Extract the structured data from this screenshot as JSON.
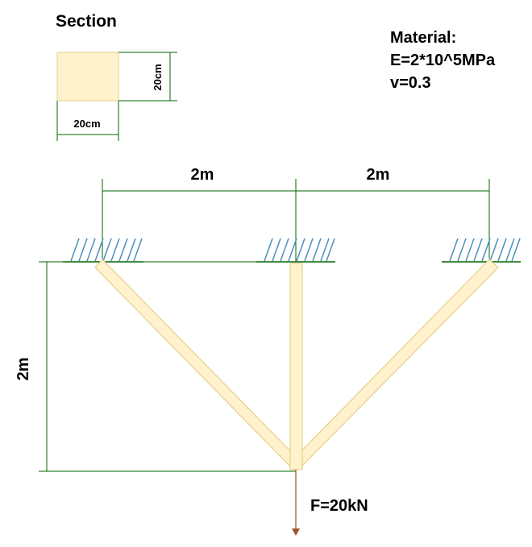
{
  "section": {
    "title": "Section",
    "width_label": "20cm",
    "height_label": "20cm"
  },
  "material": {
    "heading": "Material:",
    "elastic_modulus": "E=2*10^5MPa",
    "poisson_ratio": "v=0.3"
  },
  "dimensions": {
    "span_left": "2m",
    "span_right": "2m",
    "height": "2m"
  },
  "load": {
    "label": "F=20kN"
  },
  "colors": {
    "member_fill": "#fff2cc",
    "member_stroke": "#e5cf8c",
    "dimension_line": "#006400",
    "support_hatch": "#4a90b8",
    "load_arrow": "#a0522d"
  }
}
